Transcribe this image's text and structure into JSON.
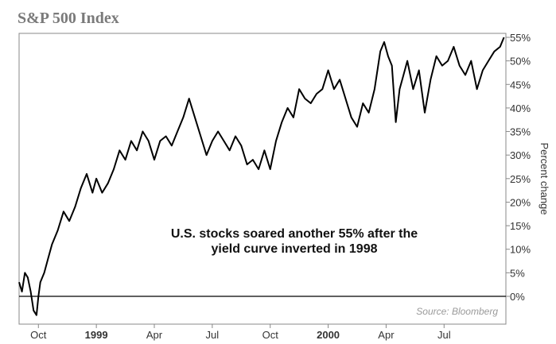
{
  "chart_data": {
    "type": "line",
    "title": "S&P 500 Index",
    "ylabel": "Percent change",
    "xlabel": "",
    "ylim": [
      -5,
      55
    ],
    "y_ticks": [
      "55%",
      "50%",
      "45%",
      "40%",
      "35%",
      "30%",
      "25%",
      "20%",
      "15%",
      "10%",
      "5%",
      "0%"
    ],
    "y_tick_values": [
      55,
      50,
      45,
      40,
      35,
      30,
      25,
      20,
      15,
      10,
      5,
      0
    ],
    "x_ticks": [
      {
        "label": "Oct",
        "month": 1,
        "bold": false
      },
      {
        "label": "1999",
        "month": 4,
        "bold": true
      },
      {
        "label": "Apr",
        "month": 7,
        "bold": false
      },
      {
        "label": "Jul",
        "month": 10,
        "bold": false
      },
      {
        "label": "Oct",
        "month": 13,
        "bold": false
      },
      {
        "label": "2000",
        "month": 16,
        "bold": true
      },
      {
        "label": "Apr",
        "month": 19,
        "bold": false
      },
      {
        "label": "Jul",
        "month": 22,
        "bold": false
      }
    ],
    "annotation": [
      "U.S. stocks soared another 55% after the",
      "yield curve inverted in 1998"
    ],
    "source": "Source: Bloomberg",
    "grid": false,
    "series": [
      {
        "name": "",
        "x": [
          0.0,
          0.15,
          0.3,
          0.45,
          0.6,
          0.75,
          0.9,
          1.0,
          1.1,
          1.3,
          1.5,
          1.7,
          2.0,
          2.3,
          2.6,
          2.9,
          3.2,
          3.5,
          3.8,
          4.0,
          4.3,
          4.6,
          4.9,
          5.2,
          5.5,
          5.8,
          6.1,
          6.4,
          6.7,
          7.0,
          7.3,
          7.6,
          7.9,
          8.2,
          8.5,
          8.8,
          9.1,
          9.4,
          9.7,
          10.0,
          10.3,
          10.6,
          10.9,
          11.2,
          11.5,
          11.8,
          12.1,
          12.4,
          12.7,
          13.0,
          13.3,
          13.6,
          13.9,
          14.2,
          14.5,
          14.8,
          15.1,
          15.4,
          15.7,
          16.0,
          16.3,
          16.6,
          16.9,
          17.2,
          17.5,
          17.8,
          18.1,
          18.4,
          18.7,
          18.9,
          19.1,
          19.3,
          19.5,
          19.7,
          19.9,
          20.1,
          20.4,
          20.7,
          21.0,
          21.3,
          21.6,
          21.9,
          22.2,
          22.5,
          22.8,
          23.1,
          23.4,
          23.7,
          24.0,
          24.3,
          24.6,
          24.9,
          25.1
        ],
        "y": [
          3,
          1,
          5,
          4,
          1,
          -3,
          -4,
          0,
          3,
          5,
          8,
          11,
          14,
          18,
          16,
          19,
          23,
          26,
          22,
          25,
          22,
          24,
          27,
          31,
          29,
          33,
          31,
          35,
          33,
          29,
          33,
          34,
          32,
          35,
          38,
          42,
          38,
          34,
          30,
          33,
          35,
          33,
          31,
          34,
          32,
          28,
          29,
          27,
          31,
          27,
          33,
          37,
          40,
          38,
          44,
          42,
          41,
          43,
          44,
          48,
          44,
          46,
          42,
          38,
          36,
          41,
          39,
          44,
          52,
          54,
          51,
          49,
          37,
          44,
          47,
          50,
          44,
          48,
          39,
          46,
          51,
          49,
          50,
          53,
          49,
          47,
          50,
          44,
          48,
          50,
          52,
          53,
          55
        ]
      }
    ]
  }
}
